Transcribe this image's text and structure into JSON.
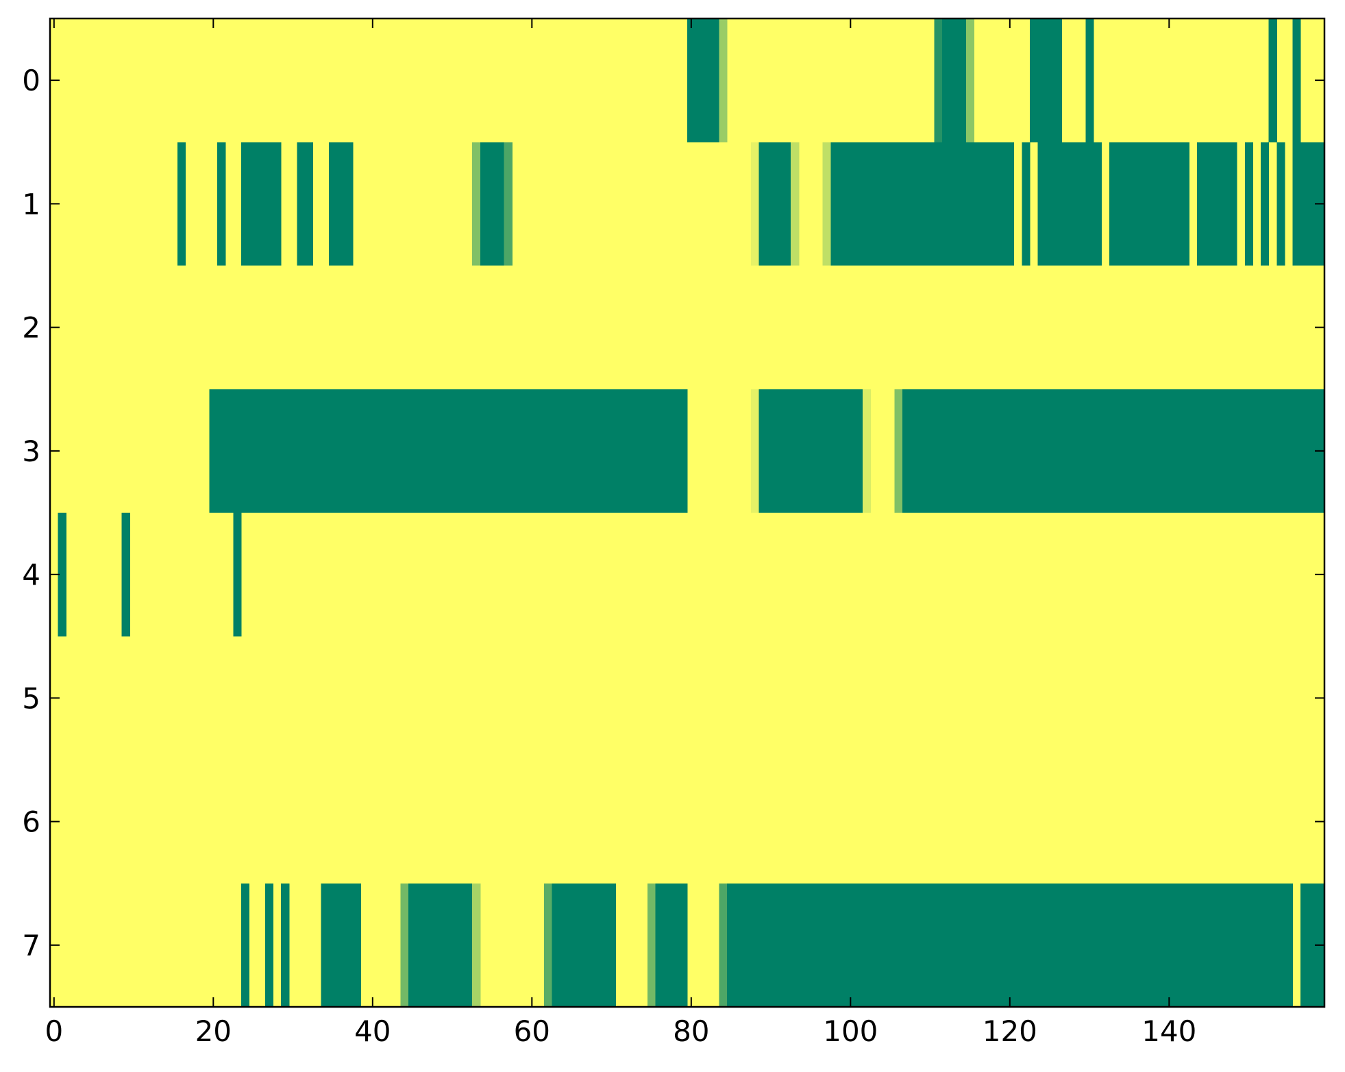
{
  "chart_data": {
    "type": "heatmap",
    "title": "",
    "xlabel": "",
    "ylabel": "",
    "xlim": [
      -0.5,
      159.5
    ],
    "ylim": [
      7.5,
      -0.5
    ],
    "grid": false,
    "legend": "none",
    "colormap": "summer",
    "color_scale": {
      "min_color": "#008066",
      "max_color": "#ffff66",
      "min_value": 0,
      "max_value": 1
    },
    "x_ticks": [
      0,
      20,
      40,
      60,
      80,
      100,
      120,
      140
    ],
    "y_ticks": [
      0,
      1,
      2,
      3,
      4,
      5,
      6,
      7
    ],
    "n_columns": 160,
    "background_value": 1,
    "rows": [
      {
        "row": 0,
        "segments": [
          [
            80,
            83,
            0
          ],
          [
            84,
            84,
            0.6
          ],
          [
            111,
            111,
            0.15
          ],
          [
            112,
            114,
            0
          ],
          [
            115,
            115,
            0.55
          ],
          [
            123,
            126,
            0
          ],
          [
            130,
            130,
            0
          ],
          [
            153,
            153,
            0
          ],
          [
            156,
            156,
            0
          ]
        ]
      },
      {
        "row": 1,
        "segments": [
          [
            16,
            16,
            0
          ],
          [
            21,
            21,
            0
          ],
          [
            24,
            28,
            0
          ],
          [
            31,
            32,
            0
          ],
          [
            35,
            37,
            0
          ],
          [
            53,
            53,
            0.5
          ],
          [
            54,
            56,
            0
          ],
          [
            57,
            57,
            0.3
          ],
          [
            88,
            88,
            0.9
          ],
          [
            89,
            92,
            0
          ],
          [
            93,
            93,
            0.75
          ],
          [
            97,
            97,
            0.75
          ],
          [
            98,
            120,
            0
          ],
          [
            122,
            122,
            0
          ],
          [
            124,
            131,
            0
          ],
          [
            133,
            142,
            0
          ],
          [
            144,
            148,
            0
          ],
          [
            150,
            150,
            0
          ],
          [
            152,
            152,
            0
          ],
          [
            154,
            154,
            0
          ],
          [
            156,
            159,
            0
          ]
        ]
      },
      {
        "row": 2,
        "segments": []
      },
      {
        "row": 3,
        "segments": [
          [
            20,
            79,
            0
          ],
          [
            88,
            88,
            0.9
          ],
          [
            89,
            101,
            0
          ],
          [
            102,
            102,
            0.85
          ],
          [
            106,
            106,
            0.5
          ],
          [
            107,
            159,
            0
          ]
        ]
      },
      {
        "row": 4,
        "segments": [
          [
            1,
            1,
            0
          ],
          [
            9,
            9,
            0
          ],
          [
            23,
            23,
            0
          ]
        ]
      },
      {
        "row": 5,
        "segments": []
      },
      {
        "row": 6,
        "segments": []
      },
      {
        "row": 7,
        "segments": [
          [
            24,
            24,
            0
          ],
          [
            27,
            27,
            0
          ],
          [
            29,
            29,
            0
          ],
          [
            34,
            38,
            0
          ],
          [
            44,
            44,
            0.45
          ],
          [
            45,
            52,
            0
          ],
          [
            53,
            53,
            0.65
          ],
          [
            62,
            62,
            0.35
          ],
          [
            63,
            70,
            0
          ],
          [
            75,
            75,
            0.45
          ],
          [
            76,
            79,
            0
          ],
          [
            84,
            84,
            0.3
          ],
          [
            85,
            155,
            0
          ],
          [
            157,
            159,
            0
          ]
        ]
      }
    ]
  }
}
